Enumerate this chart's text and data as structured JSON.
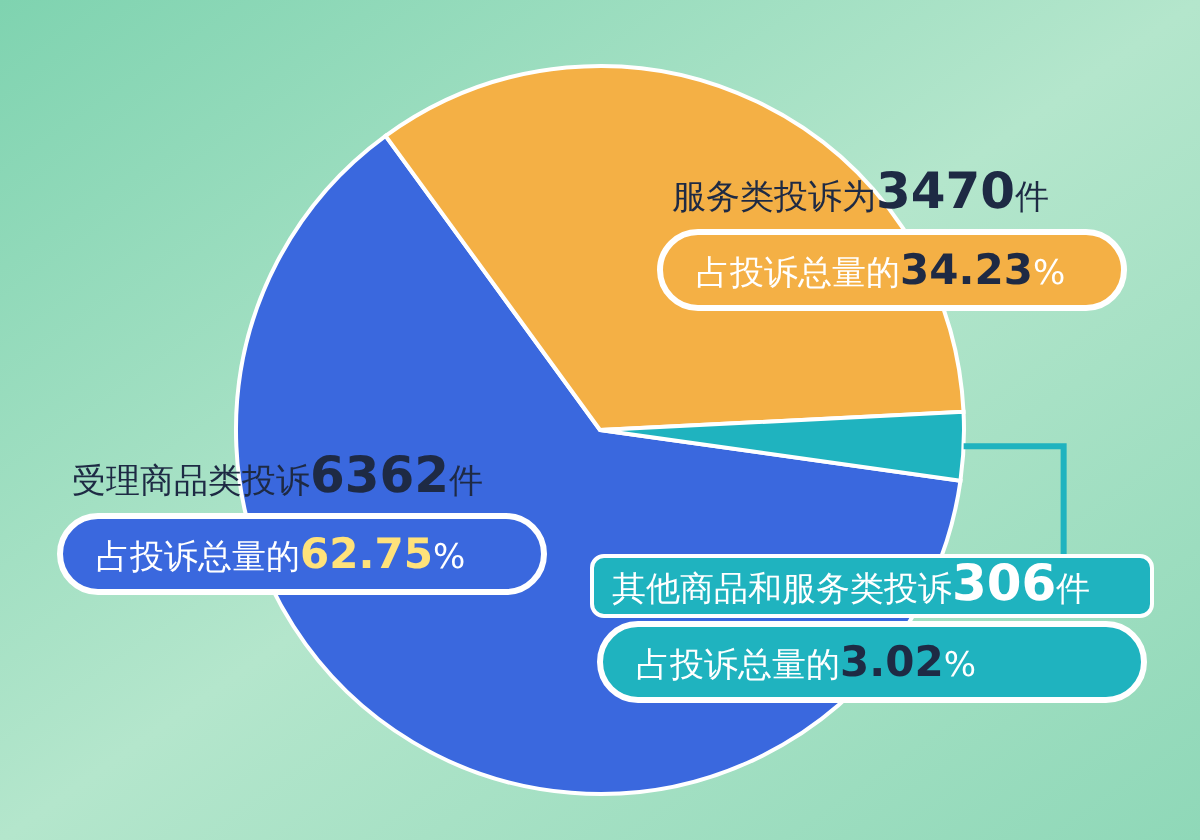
{
  "chart_data": {
    "type": "pie",
    "categories": [
      "受理商品类投诉",
      "服务类投诉为",
      "其他商品和服务类投诉"
    ],
    "values": [
      6362,
      3470,
      306
    ],
    "colors": [
      "#3a68de",
      "#f4b045",
      "#1fb3bf"
    ],
    "value_labels": [
      "6362件",
      "3470件",
      "306件"
    ],
    "annotations": [
      "占投诉总量的62.75%",
      "占投诉总量的34.23%",
      "占投诉总量的3.02%"
    ]
  }
}
